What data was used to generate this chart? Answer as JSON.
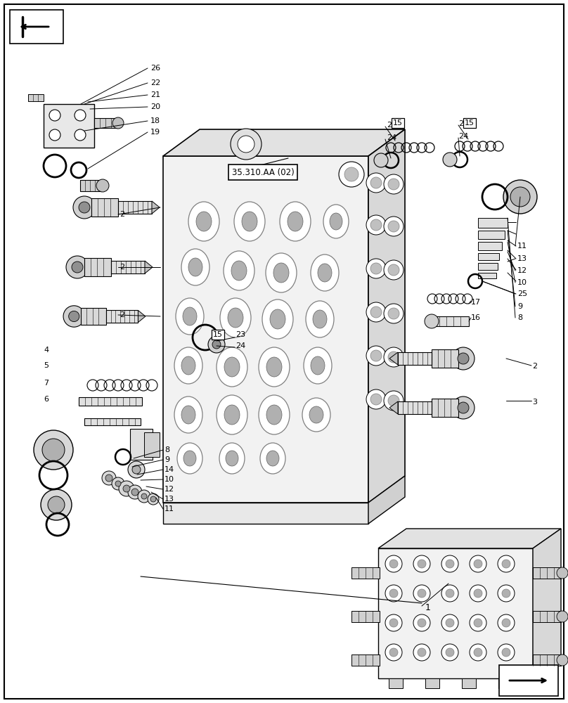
{
  "bg_color": "#ffffff",
  "fig_width": 8.08,
  "fig_height": 10.0,
  "dpi": 100,
  "ref_label": "35.310.AA (02)"
}
